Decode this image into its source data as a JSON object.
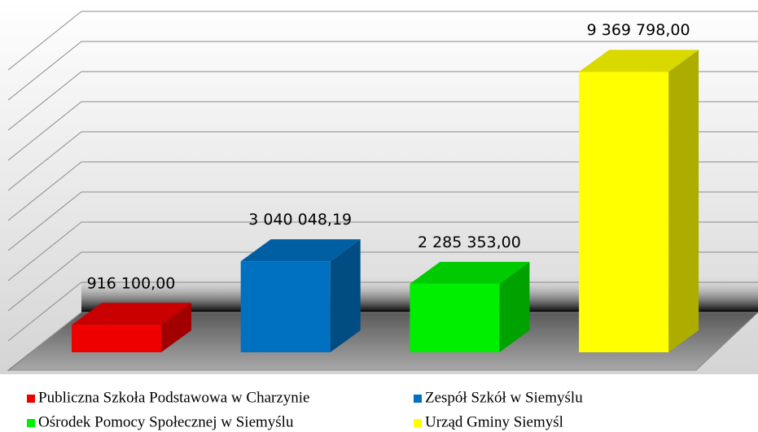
{
  "chart_data": {
    "type": "bar3d",
    "categories": [
      "Publiczna Szkoła Podstawowa w Charzynie",
      "Zespół Szkół w Siemyślu",
      "Ośrodek Pomocy Społecznej w Siemyślu",
      "Urząd Gminy Siemyśl"
    ],
    "values": [
      916100,
      3040048.19,
      2285353,
      9369798
    ],
    "value_labels": [
      "916 100,00",
      "3 040 048,19",
      "2 285 353,00",
      "9 369 798,00"
    ],
    "colors": [
      "#ee0000",
      "#0070c0",
      "#00ee00",
      "#ffff00"
    ],
    "ylim": [
      0,
      10000000
    ],
    "yticks": [
      0,
      1000000,
      2000000,
      3000000,
      4000000,
      5000000,
      6000000,
      7000000,
      8000000,
      9000000,
      10000000
    ],
    "grid": true
  }
}
